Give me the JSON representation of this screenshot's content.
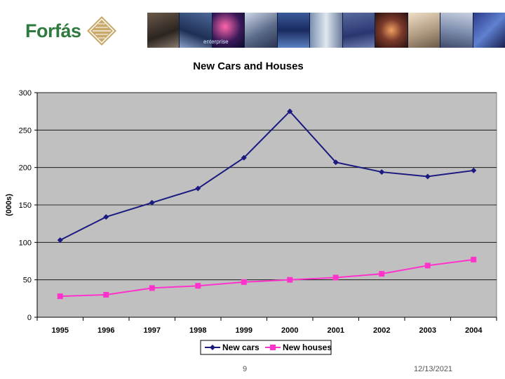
{
  "header": {
    "logo_text": "Forfás",
    "banner_caption": "enterprise"
  },
  "chart_data": {
    "type": "line",
    "title": "New Cars and Houses",
    "xlabel": "",
    "ylabel": "(000s)",
    "categories": [
      "1995",
      "1996",
      "1997",
      "1998",
      "1999",
      "2000",
      "2001",
      "2002",
      "2003",
      "2004"
    ],
    "ylim": [
      0,
      300
    ],
    "yticks": [
      0,
      50,
      100,
      150,
      200,
      250,
      300
    ],
    "grid": true,
    "legend": "bottom",
    "series": [
      {
        "name": "New cars",
        "color": "#1a1a80",
        "marker": "diamond",
        "values": [
          103,
          134,
          153,
          172,
          213,
          275,
          207,
          194,
          188,
          196
        ]
      },
      {
        "name": "New houses",
        "color": "#ff33cc",
        "marker": "square",
        "values": [
          28,
          30,
          39,
          42,
          47,
          50,
          53,
          58,
          69,
          77
        ]
      }
    ],
    "plot_background": "#c0c0c0"
  },
  "footer": {
    "page": "9",
    "date": "12/13/2021"
  }
}
